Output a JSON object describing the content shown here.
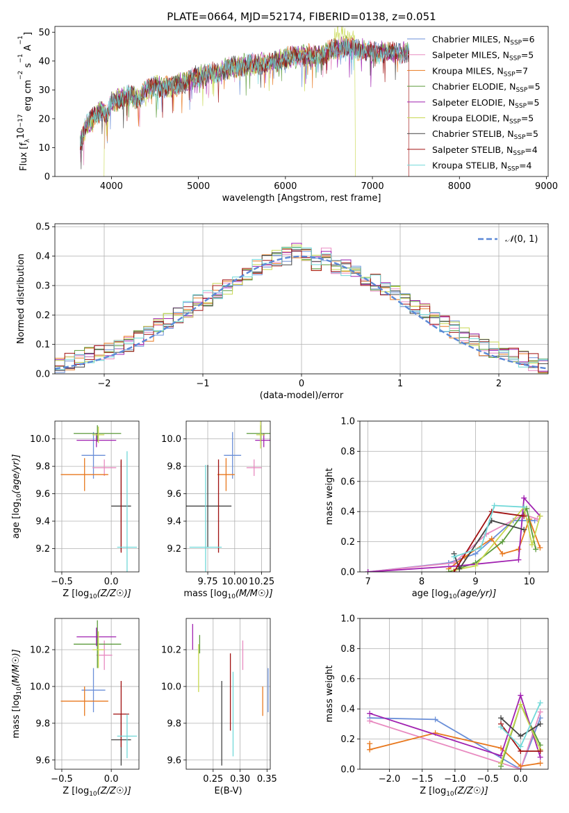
{
  "colors": {
    "chabrier_miles": "#6a8fd8",
    "salpeter_miles": "#e88ac0",
    "kroupa_miles": "#e8781e",
    "chabrier_elodie": "#5a9a3a",
    "salpeter_elodie": "#a020b0",
    "kroupa_elodie": "#c8d850",
    "chabrier_stelib": "#444444",
    "salpeter_stelib": "#a01010",
    "kroupa_stelib": "#70d8d8"
  },
  "chart_data": [
    {
      "id": "spectrum",
      "type": "line",
      "title": "PLATE=0664, MJD=52174, FIBERID=0138, z=0.051",
      "xlabel": "wavelength [Angstrom, rest frame]",
      "ylabel_parts": [
        "Flux [f",
        "λ",
        "10",
        "−17",
        " erg cm",
        "−2",
        " s",
        "−1",
        " A",
        "−1",
        "]"
      ],
      "xlim": [
        3350,
        9020
      ],
      "ylim": [
        0,
        52
      ],
      "xticks": [
        4000,
        5000,
        6000,
        7000,
        8000,
        9000
      ],
      "yticks": [
        0,
        10,
        20,
        30,
        40,
        50
      ],
      "x_sample": [
        3650,
        3700,
        3800,
        3900,
        3950,
        4000,
        4100,
        4200,
        4300,
        4400,
        4500,
        4700,
        4860,
        5000,
        5200,
        5400,
        5600,
        5800,
        5900,
        6000,
        6200,
        6400,
        6560,
        6700,
        6800,
        6900,
        7000,
        7200,
        7400
      ],
      "y_sample": [
        12,
        17,
        21,
        23,
        20,
        26,
        27,
        28,
        27,
        30,
        31,
        31,
        33,
        35,
        36,
        38,
        39,
        39,
        40,
        41,
        42,
        42,
        44,
        45,
        44,
        44,
        43,
        43,
        43
      ],
      "legend_location": "upper right",
      "legend": [
        {
          "key": "chabrier_miles",
          "label": "Chabrier MILES, N",
          "nssp": 6
        },
        {
          "key": "salpeter_miles",
          "label": "Salpeter MILES, N",
          "nssp": 5
        },
        {
          "key": "kroupa_miles",
          "label": "Kroupa MILES, N",
          "nssp": 7
        },
        {
          "key": "chabrier_elodie",
          "label": "Chabrier ELODIE, N",
          "nssp": 5
        },
        {
          "key": "salpeter_elodie",
          "label": "Salpeter ELODIE, N",
          "nssp": 5
        },
        {
          "key": "kroupa_elodie",
          "label": "Kroupa ELODIE, N",
          "nssp": 5
        },
        {
          "key": "chabrier_stelib",
          "label": "Chabrier STELIB, N",
          "nssp": 5
        },
        {
          "key": "salpeter_stelib",
          "label": "Salpeter STELIB, N",
          "nssp": 4
        },
        {
          "key": "kroupa_stelib",
          "label": "Kroupa STELIB, N",
          "nssp": 4
        }
      ],
      "nssp_subscript": "SSP",
      "legend_equals": "="
    },
    {
      "id": "residuals",
      "type": "histogram",
      "xlabel": "(data-model)/error",
      "ylabel": "Normed distribution",
      "xlim": [
        -2.5,
        2.5
      ],
      "ylim": [
        0,
        0.51
      ],
      "xticks": [
        -2,
        -1,
        0,
        1,
        2
      ],
      "yticks": [
        0.0,
        0.1,
        0.2,
        0.3,
        0.4,
        0.5
      ],
      "grid": true,
      "legend_location": "upper right",
      "normal_label_parts": [
        "𝒩",
        "(0, 1)"
      ],
      "bin_width": 0.1,
      "base_profile": [
        0.03,
        0.04,
        0.05,
        0.06,
        0.07,
        0.08,
        0.09,
        0.1,
        0.12,
        0.14,
        0.16,
        0.18,
        0.2,
        0.22,
        0.24,
        0.26,
        0.28,
        0.3,
        0.32,
        0.34,
        0.36,
        0.38,
        0.39,
        0.4,
        0.42,
        0.4,
        0.38,
        0.4,
        0.37,
        0.36,
        0.35,
        0.33,
        0.31,
        0.29,
        0.27,
        0.25,
        0.23,
        0.21,
        0.19,
        0.17,
        0.15,
        0.13,
        0.11,
        0.09,
        0.08,
        0.07,
        0.06,
        0.05,
        0.04,
        0.03
      ]
    },
    {
      "id": "age-vs-z",
      "type": "scatter",
      "xlabel": "Z [log10(Z/Z☉)]",
      "ylabel": "age  [log10(age/yr)]",
      "xlim": [
        -0.57,
        0.28
      ],
      "ylim": [
        9.03,
        10.13
      ],
      "xticks": [
        -0.5,
        0.0
      ],
      "yticks": [
        9.2,
        9.4,
        9.6,
        9.8,
        10.0
      ],
      "points": [
        {
          "key": "chabrier_miles",
          "x": -0.18,
          "y": 9.88,
          "xerr": 0.12,
          "yerr": 0.17
        },
        {
          "key": "salpeter_miles",
          "x": -0.07,
          "y": 9.79,
          "xerr": 0.12,
          "yerr": 0.06
        },
        {
          "key": "kroupa_miles",
          "x": -0.27,
          "y": 9.74,
          "xerr": 0.24,
          "yerr": 0.12
        },
        {
          "key": "chabrier_elodie",
          "x": -0.14,
          "y": 10.04,
          "xerr": 0.24,
          "yerr": 0.06
        },
        {
          "key": "salpeter_elodie",
          "x": -0.15,
          "y": 9.99,
          "xerr": 0.2,
          "yerr": 0.05
        },
        {
          "key": "kroupa_elodie",
          "x": -0.13,
          "y": 10.03,
          "xerr": 0.06,
          "yerr": 0.06
        },
        {
          "key": "chabrier_stelib",
          "x": 0.1,
          "y": 9.51,
          "xerr": 0.1,
          "yerr": 0.33
        },
        {
          "key": "salpeter_stelib",
          "x": 0.1,
          "y": 9.51,
          "xerr": 0.0,
          "yerr": 0.34
        },
        {
          "key": "kroupa_stelib",
          "x": 0.16,
          "y": 9.21,
          "xerr": 0.1,
          "yerr": 0.7
        }
      ]
    },
    {
      "id": "age-vs-mass",
      "type": "scatter",
      "xlabel": "mass [log10(M/M☉)]",
      "xlim": [
        9.55,
        10.33
      ],
      "ylim": [
        9.03,
        10.13
      ],
      "xticks": [
        9.75,
        10.0,
        10.25
      ],
      "xticklabels": [
        "9.75",
        "10.00",
        "10.25"
      ],
      "yticks": [
        9.2,
        9.4,
        9.6,
        9.8,
        10.0
      ],
      "points": [
        {
          "key": "chabrier_miles",
          "x": 9.98,
          "y": 9.88,
          "xerr": 0.08,
          "yerr": 0.17
        },
        {
          "key": "salpeter_miles",
          "x": 10.18,
          "y": 9.79,
          "xerr": 0.07,
          "yerr": 0.06
        },
        {
          "key": "kroupa_miles",
          "x": 9.92,
          "y": 9.74,
          "xerr": 0.08,
          "yerr": 0.12
        },
        {
          "key": "chabrier_elodie",
          "x": 10.24,
          "y": 10.04,
          "xerr": 0.13,
          "yerr": 0.06
        },
        {
          "key": "salpeter_elodie",
          "x": 10.27,
          "y": 9.99,
          "xerr": 0.08,
          "yerr": 0.05
        },
        {
          "key": "kroupa_elodie",
          "x": 10.24,
          "y": 10.03,
          "xerr": 0.04,
          "yerr": 0.1
        },
        {
          "key": "chabrier_stelib",
          "x": 9.75,
          "y": 9.51,
          "xerr": 0.22,
          "yerr": 0.3
        },
        {
          "key": "salpeter_stelib",
          "x": 9.85,
          "y": 9.51,
          "xerr": 0.0,
          "yerr": 0.34
        },
        {
          "key": "kroupa_stelib",
          "x": 9.73,
          "y": 9.21,
          "xerr": 0.15,
          "yerr": 0.6
        }
      ]
    },
    {
      "id": "mw-vs-age",
      "type": "line",
      "xlabel": "age  [log10(age/yr)]",
      "ylabel": "mass weight",
      "xlim": [
        6.85,
        10.35
      ],
      "ylim": [
        0.0,
        1.0
      ],
      "xticks": [
        7,
        8,
        9,
        10
      ],
      "yticks": [
        0.0,
        0.2,
        0.4,
        0.6,
        0.8,
        1.0
      ],
      "grid": true,
      "series": [
        {
          "key": "chabrier_miles",
          "x": [
            7.0,
            8.5,
            9.0,
            9.7,
            10.1
          ],
          "y": [
            0.0,
            0.06,
            0.12,
            0.34,
            0.34
          ]
        },
        {
          "key": "salpeter_miles",
          "x": [
            7.0,
            8.6,
            9.2,
            9.9,
            10.15
          ],
          "y": [
            0.0,
            0.06,
            0.25,
            0.38,
            0.35
          ]
        },
        {
          "key": "kroupa_miles",
          "x": [
            8.5,
            8.8,
            9.3,
            9.5,
            9.8,
            10.0,
            10.2
          ],
          "y": [
            0.02,
            0.1,
            0.22,
            0.12,
            0.15,
            0.35,
            0.16
          ]
        },
        {
          "key": "chabrier_elodie",
          "x": [
            8.5,
            9.0,
            9.5,
            9.95,
            10.12
          ],
          "y": [
            0.0,
            0.06,
            0.2,
            0.42,
            0.15
          ]
        },
        {
          "key": "salpeter_elodie",
          "x": [
            7.0,
            8.7,
            9.8,
            9.9,
            10.2
          ],
          "y": [
            0.0,
            0.04,
            0.08,
            0.49,
            0.37
          ]
        },
        {
          "key": "kroupa_elodie",
          "x": [
            8.6,
            9.0,
            9.9,
            10.05,
            10.2
          ],
          "y": [
            0.01,
            0.04,
            0.43,
            0.18,
            0.37
          ]
        },
        {
          "key": "chabrier_stelib",
          "x": [
            8.6,
            8.7,
            9.3,
            9.9
          ],
          "y": [
            0.12,
            0.02,
            0.34,
            0.28
          ]
        },
        {
          "key": "salpeter_stelib",
          "x": [
            8.6,
            9.3,
            9.9
          ],
          "y": [
            0.0,
            0.4,
            0.37
          ]
        },
        {
          "key": "kroupa_stelib",
          "x": [
            8.6,
            9.1,
            9.35,
            9.9
          ],
          "y": [
            0.1,
            0.16,
            0.44,
            0.43
          ]
        }
      ]
    },
    {
      "id": "mass-vs-z",
      "type": "scatter",
      "xlabel": "Z [log10(Z/Z☉)]",
      "ylabel": "mass [log10(M/M☉)]",
      "xlim": [
        -0.57,
        0.28
      ],
      "ylim": [
        9.55,
        10.37
      ],
      "xticks": [
        -0.5,
        0.0
      ],
      "yticks": [
        9.6,
        9.8,
        10.0,
        10.2
      ],
      "points": [
        {
          "key": "chabrier_miles",
          "x": -0.18,
          "y": 9.98,
          "xerr": 0.12,
          "yerr": 0.12
        },
        {
          "key": "salpeter_miles",
          "x": -0.07,
          "y": 10.17,
          "xerr": 0.08,
          "yerr": 0.08
        },
        {
          "key": "kroupa_miles",
          "x": -0.27,
          "y": 9.92,
          "xerr": 0.24,
          "yerr": 0.08
        },
        {
          "key": "chabrier_elodie",
          "x": -0.14,
          "y": 10.23,
          "xerr": 0.24,
          "yerr": 0.13
        },
        {
          "key": "salpeter_elodie",
          "x": -0.15,
          "y": 10.27,
          "xerr": 0.2,
          "yerr": 0.05
        },
        {
          "key": "kroupa_elodie",
          "x": -0.13,
          "y": 10.2,
          "xerr": 0.06,
          "yerr": 0.1
        },
        {
          "key": "chabrier_stelib",
          "x": 0.1,
          "y": 9.71,
          "xerr": 0.1,
          "yerr": 0.14
        },
        {
          "key": "salpeter_stelib",
          "x": 0.1,
          "y": 9.85,
          "xerr": 0.08,
          "yerr": 0.18
        },
        {
          "key": "kroupa_stelib",
          "x": 0.16,
          "y": 9.73,
          "xerr": 0.1,
          "yerr": 0.12
        }
      ]
    },
    {
      "id": "mass-vs-ebv",
      "type": "scatter",
      "xlabel": "E(B-V)",
      "xlim": [
        0.2,
        0.356
      ],
      "ylim": [
        9.55,
        10.37
      ],
      "xticks": [
        0.25,
        0.3,
        0.35
      ],
      "yticks": [
        9.6,
        9.8,
        10.0,
        10.2
      ],
      "points": [
        {
          "key": "chabrier_miles",
          "x": 0.352,
          "y": 9.98,
          "xerr": 0.0,
          "yerr": 0.12
        },
        {
          "key": "salpeter_miles",
          "x": 0.305,
          "y": 10.17,
          "xerr": 0.0,
          "yerr": 0.08
        },
        {
          "key": "kroupa_miles",
          "x": 0.342,
          "y": 9.92,
          "xerr": 0.0,
          "yerr": 0.08
        },
        {
          "key": "chabrier_elodie",
          "x": 0.225,
          "y": 10.23,
          "xerr": 0.0,
          "yerr": 0.05
        },
        {
          "key": "salpeter_elodie",
          "x": 0.212,
          "y": 10.27,
          "xerr": 0.0,
          "yerr": 0.07
        },
        {
          "key": "kroupa_elodie",
          "x": 0.223,
          "y": 10.1,
          "xerr": 0.0,
          "yerr": 0.13
        },
        {
          "key": "chabrier_stelib",
          "x": 0.266,
          "y": 9.8,
          "xerr": 0.0,
          "yerr": 0.23
        },
        {
          "key": "salpeter_stelib",
          "x": 0.282,
          "y": 9.97,
          "xerr": 0.0,
          "yerr": 0.21
        },
        {
          "key": "kroupa_stelib",
          "x": 0.287,
          "y": 9.85,
          "xerr": 0.0,
          "yerr": 0.23
        }
      ]
    },
    {
      "id": "mw-vs-z",
      "type": "line",
      "xlabel": "Z [log10(Z/Z☉)]",
      "ylabel": "mass weight",
      "xlim": [
        -2.45,
        0.42
      ],
      "ylim": [
        0.0,
        1.0
      ],
      "xticks": [
        -2.0,
        -1.5,
        -1.0,
        -0.5,
        0.0
      ],
      "yticks": [
        0.0,
        0.2,
        0.4,
        0.6,
        0.8,
        1.0
      ],
      "grid": true,
      "series": [
        {
          "key": "chabrier_miles",
          "x": [
            -2.3,
            -1.3,
            0.0,
            0.3
          ],
          "y": [
            0.34,
            0.33,
            0.0,
            0.34
          ]
        },
        {
          "key": "salpeter_miles",
          "x": [
            -2.3,
            0.0,
            0.3
          ],
          "y": [
            0.32,
            0.0,
            0.38
          ]
        },
        {
          "key": "kroupa_miles",
          "x": [
            -2.3,
            -2.3,
            -1.3,
            -0.3,
            0.0,
            0.3
          ],
          "y": [
            0.17,
            0.13,
            0.24,
            0.14,
            0.02,
            0.04
          ]
        },
        {
          "key": "chabrier_elodie",
          "x": [
            -0.3,
            0.0,
            0.3
          ],
          "y": [
            0.02,
            0.43,
            0.16
          ]
        },
        {
          "key": "salpeter_elodie",
          "x": [
            -2.3,
            -0.3,
            0.0,
            0.3
          ],
          "y": [
            0.37,
            0.09,
            0.49,
            0.08
          ]
        },
        {
          "key": "kroupa_elodie",
          "x": [
            -0.3,
            0.0,
            0.3
          ],
          "y": [
            0.04,
            0.43,
            0.13
          ]
        },
        {
          "key": "chabrier_stelib",
          "x": [
            -0.3,
            0.0,
            0.3
          ],
          "y": [
            0.34,
            0.22,
            0.3
          ]
        },
        {
          "key": "salpeter_stelib",
          "x": [
            -0.3,
            0.0,
            0.3
          ],
          "y": [
            0.3,
            0.12,
            0.12
          ]
        },
        {
          "key": "kroupa_stelib",
          "x": [
            -0.3,
            0.0,
            0.3
          ],
          "y": [
            0.28,
            0.15,
            0.44
          ]
        }
      ]
    }
  ]
}
